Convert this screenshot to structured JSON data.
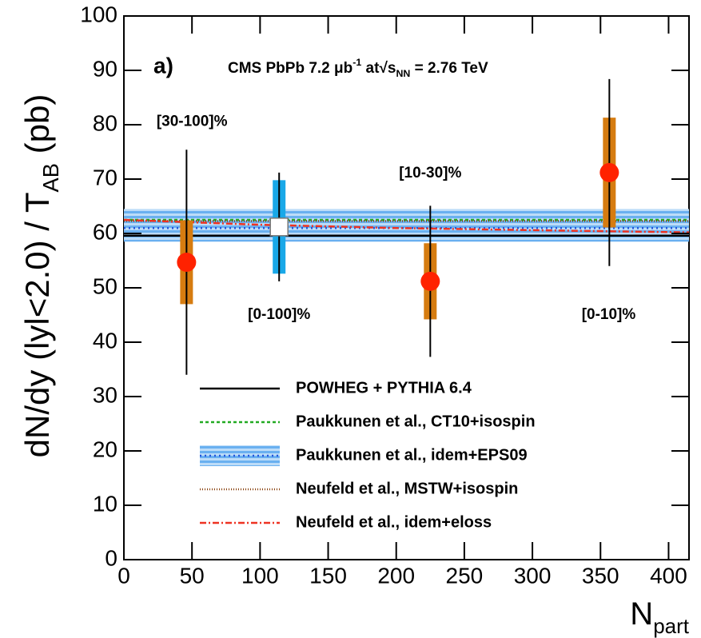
{
  "chart_data": {
    "type": "scatter",
    "label": "a)",
    "title_parts": [
      "CMS PbPb 7.2 ",
      "μ",
      "b",
      "-1",
      " at",
      "√",
      "s",
      "NN",
      " = 2.76 TeV"
    ],
    "ylabel_parts": [
      "dN/dy (lyl<2.0) / T",
      "AB",
      " (pb)"
    ],
    "xlabel_parts": [
      "N",
      "part"
    ],
    "xlim": [
      0,
      415
    ],
    "ylim": [
      0,
      100
    ],
    "xticks": [
      0,
      50,
      100,
      150,
      200,
      250,
      300,
      350,
      400
    ],
    "yticks": [
      0,
      10,
      20,
      30,
      40,
      50,
      60,
      70,
      80,
      90,
      100
    ],
    "annotations": [
      {
        "text": "[30-100]%",
        "x": 50,
        "y": 80.5
      },
      {
        "text": "[0-100]%",
        "x": 114,
        "y": 45
      },
      {
        "text": "[10-30]%",
        "x": 225,
        "y": 71
      },
      {
        "text": "[0-10]%",
        "x": 356,
        "y": 45
      }
    ],
    "measurements": [
      {
        "x": [
          46,
          225,
          356.5
        ],
        "y": [
          54.7,
          51.2,
          71.2
        ],
        "stat_err": [
          20.7,
          13.9,
          17.2
        ],
        "sys_err": [
          7.7,
          7,
          10.1
        ],
        "color": "#ff2200",
        "sys_color": "#d67c10",
        "marker": "circle"
      },
      {
        "x": [
          114
        ],
        "y": [
          61.2
        ],
        "stat_err": [
          10
        ],
        "sys_err": [
          8.6
        ],
        "color": "#ffffff",
        "sys_color": "#19a8e8",
        "marker": "square"
      }
    ],
    "series": [
      {
        "name": "POWHEG + PYTHIA 6.4",
        "color": "#000000",
        "dash": "none",
        "x": [
          0,
          415
        ],
        "y": [
          59.6,
          59.6
        ]
      },
      {
        "name": "Paukkunen et al., CT10+isospin",
        "color": "#22aa22",
        "dash": "4 3",
        "x": [
          0,
          415
        ],
        "y": [
          62.5,
          62.5
        ]
      },
      {
        "name": "Paukkunen et al., idem+EPS09",
        "color": "#2255dd",
        "dash": "2 4",
        "x": [
          0,
          415
        ],
        "y": [
          61,
          61
        ],
        "band_low": [
          58.5,
          58.5
        ],
        "band_high": [
          64.5,
          64.5
        ],
        "band_color": "#6ab0f0"
      },
      {
        "name": "Neufeld et al., MSTW+isospin",
        "color": "#8b4513",
        "dash": "1 2",
        "x": [
          0,
          415
        ],
        "y": [
          62.3,
          62.3
        ]
      },
      {
        "name": "Neufeld et al., idem+eloss",
        "color": "#ee3322",
        "dash": "8 3 2 3",
        "x": [
          0,
          100,
          200,
          300,
          415
        ],
        "y": [
          62.5,
          61.6,
          61,
          60.6,
          60.2
        ]
      }
    ]
  }
}
